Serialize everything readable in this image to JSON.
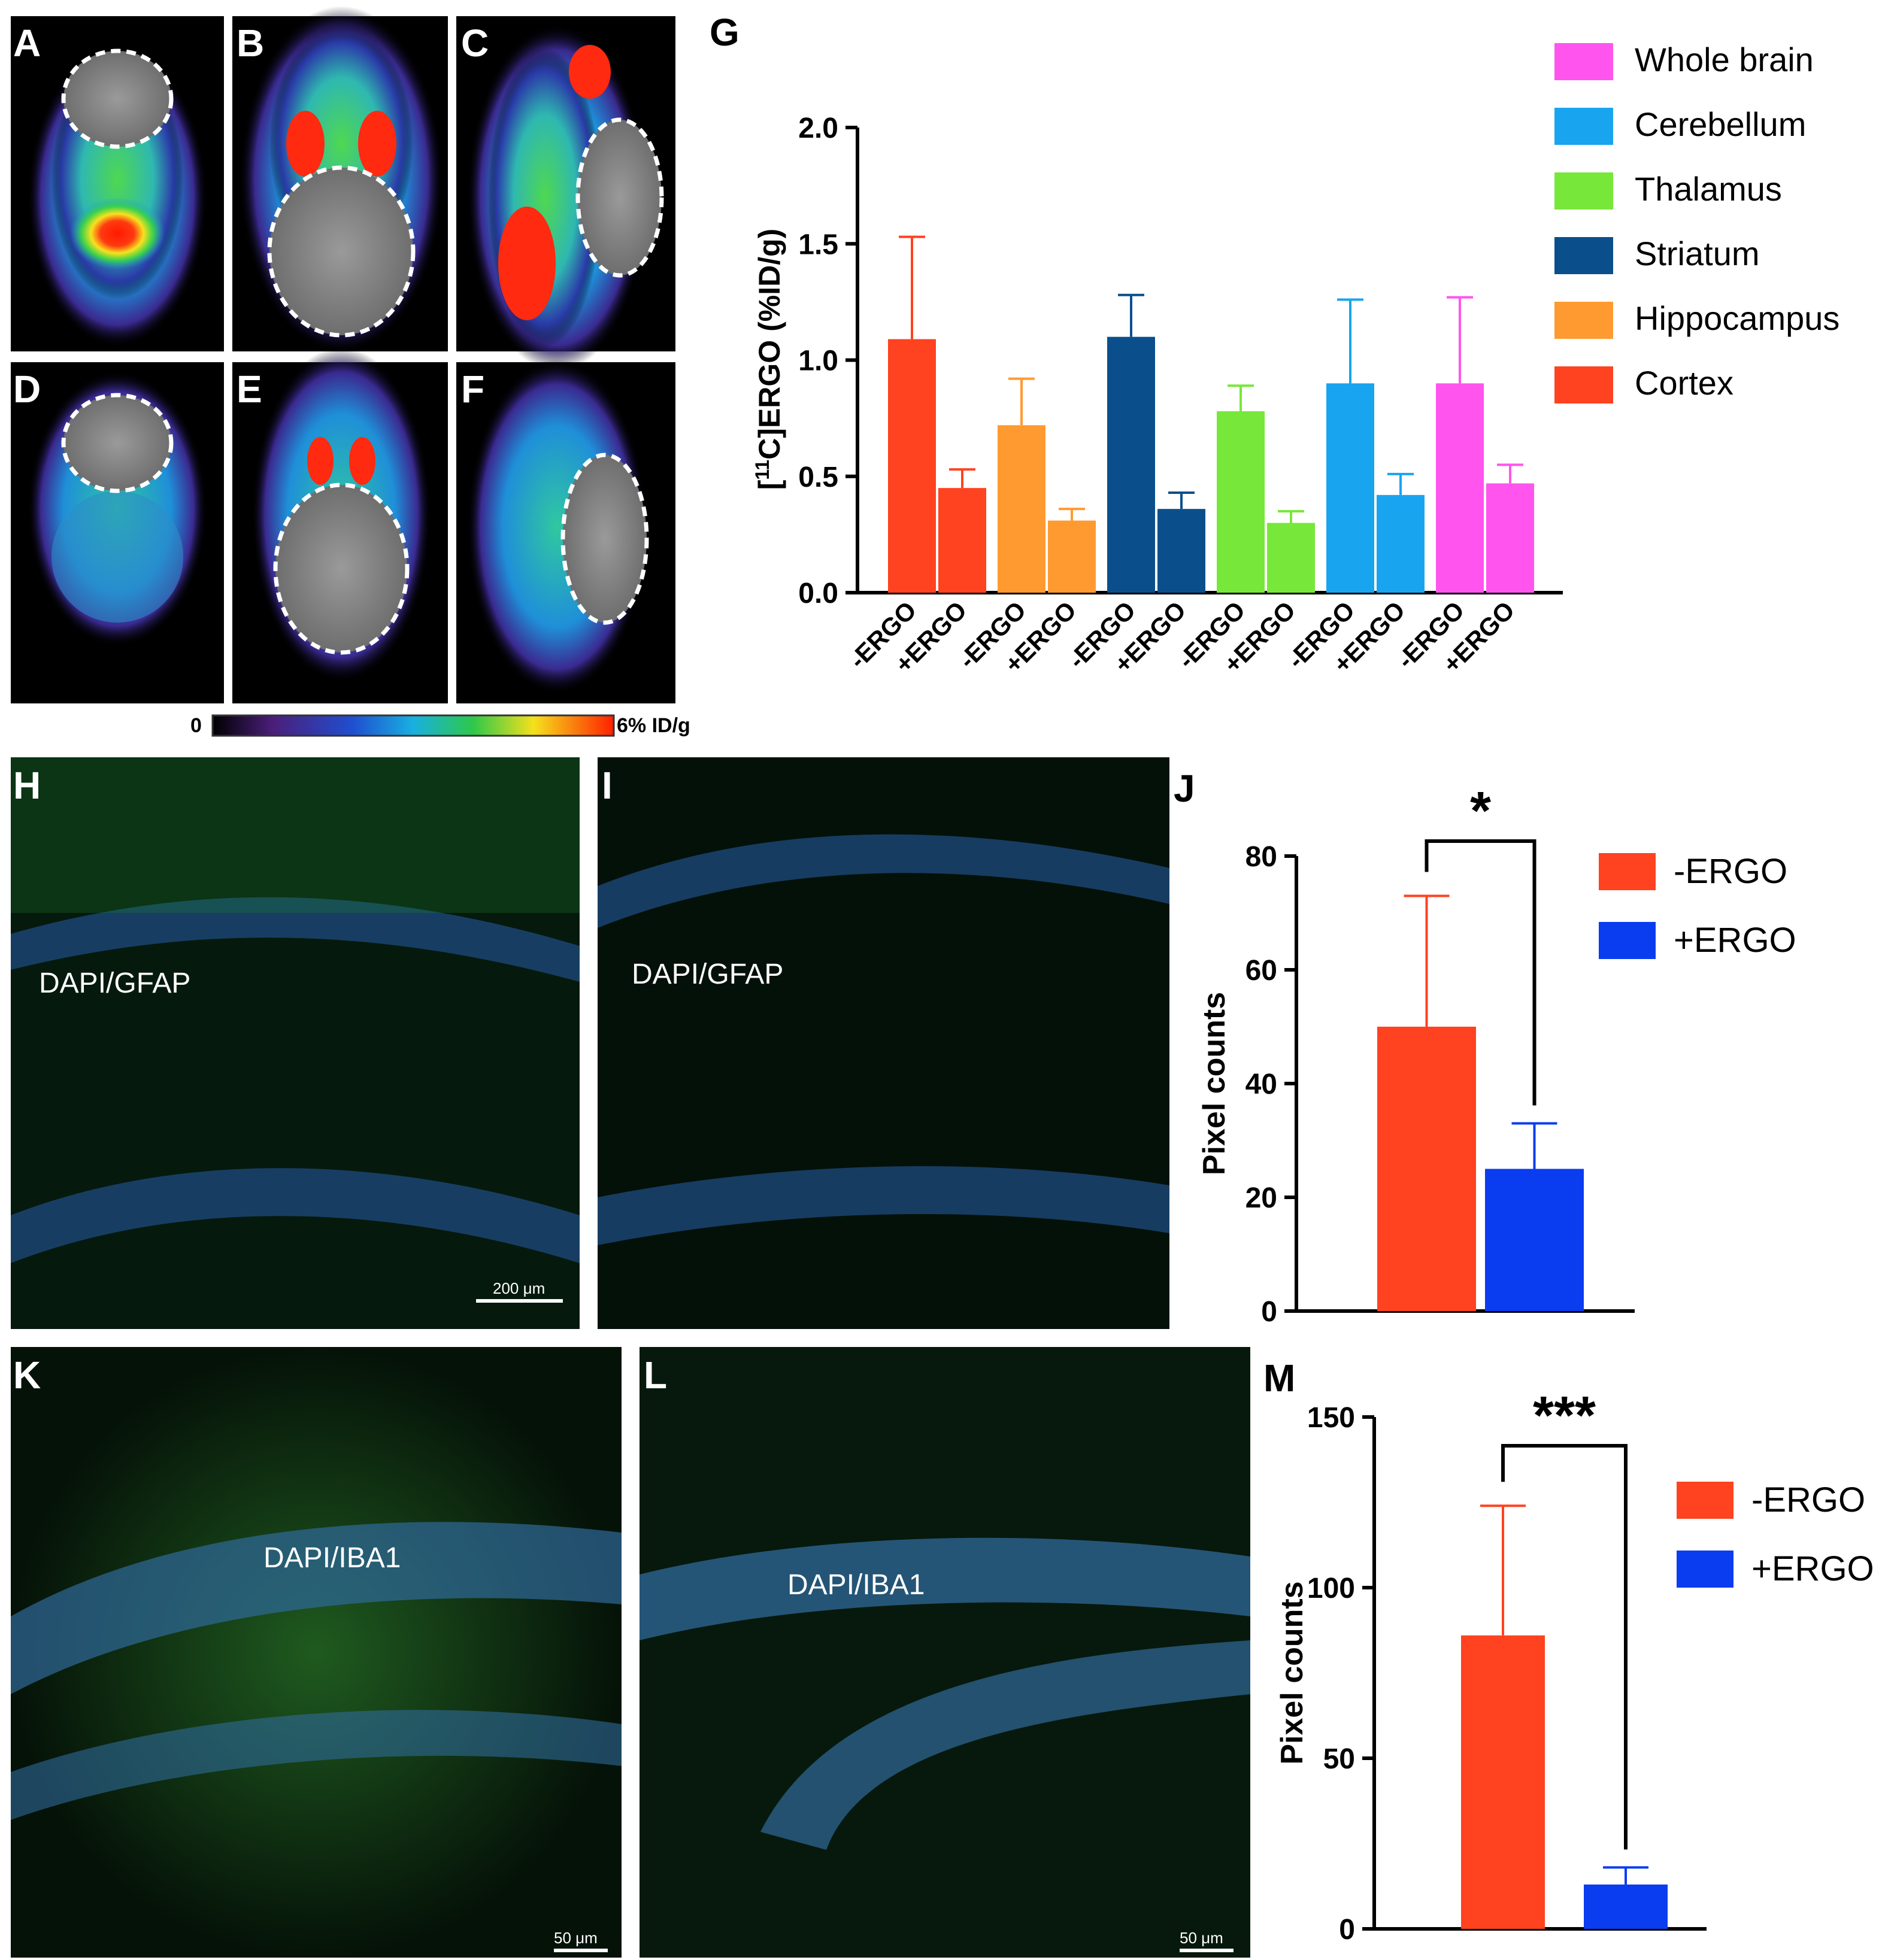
{
  "panels": {
    "A": "A",
    "B": "B",
    "C": "C",
    "D": "D",
    "E": "E",
    "F": "F",
    "G": "G",
    "H": "H",
    "I": "I",
    "J": "J",
    "K": "K",
    "L": "L",
    "M": "M"
  },
  "colorbar": {
    "min_label": "0",
    "max_label": "6% ID/g"
  },
  "micrographs": {
    "H": {
      "stain": "DAPI/GFAP",
      "scale": "200 μm"
    },
    "I": {
      "stain": "DAPI/GFAP"
    },
    "K": {
      "stain": "DAPI/IBA1",
      "scale": "50 μm"
    },
    "L": {
      "stain": "DAPI/IBA1",
      "scale": "50 μm"
    }
  },
  "colors": {
    "cortex": "#ff4220",
    "hippocampus": "#ff9a30",
    "striatum": "#0a4f8c",
    "thalamus": "#77e83a",
    "cerebellum": "#19a4ef",
    "whole_brain": "#ff55ee",
    "minus_ergo": "#ff4220",
    "plus_ergo": "#0a3cf0"
  },
  "chart_data": [
    {
      "id": "G",
      "type": "bar",
      "ylabel_super": "11",
      "ylabel_prefix": "[",
      "ylabel_rest": "C]ERGO (%ID/g)",
      "ylim": [
        0,
        2.0
      ],
      "yticks": [
        "0.0",
        "0.5",
        "1.0",
        "1.5",
        "2.0"
      ],
      "categories": [
        "-ERGO",
        "+ERGO",
        "-ERGO",
        "+ERGO",
        "-ERGO",
        "+ERGO",
        "-ERGO",
        "+ERGO",
        "-ERGO",
        "+ERGO",
        "-ERGO",
        "+ERGO"
      ],
      "groups": [
        {
          "name": "Cortex",
          "color": "#ff4220",
          "values": [
            1.09,
            0.45
          ],
          "errors": [
            0.44,
            0.08
          ]
        },
        {
          "name": "Hippocampus",
          "color": "#ff9a30",
          "values": [
            0.72,
            0.31
          ],
          "errors": [
            0.2,
            0.05
          ]
        },
        {
          "name": "Striatum",
          "color": "#0a4f8c",
          "values": [
            1.1,
            0.36
          ],
          "errors": [
            0.18,
            0.07
          ]
        },
        {
          "name": "Thalamus",
          "color": "#77e83a",
          "values": [
            0.78,
            0.3
          ],
          "errors": [
            0.11,
            0.05
          ]
        },
        {
          "name": "Cerebellum",
          "color": "#19a4ef",
          "values": [
            0.9,
            0.42
          ],
          "errors": [
            0.36,
            0.09
          ]
        },
        {
          "name": "Whole brain",
          "color": "#ff55ee",
          "values": [
            0.9,
            0.47
          ],
          "errors": [
            0.37,
            0.08
          ]
        }
      ],
      "legend": [
        "Whole brain",
        "Cerebellum",
        "Thalamus",
        "Striatum",
        "Hippocampus",
        "Cortex"
      ],
      "legend_colors": [
        "#ff55ee",
        "#19a4ef",
        "#77e83a",
        "#0a4f8c",
        "#ff9a30",
        "#ff4220"
      ],
      "legend_position": "right"
    },
    {
      "id": "J",
      "type": "bar",
      "ylabel": "Pixel counts",
      "ylim": [
        0,
        80
      ],
      "yticks": [
        "0",
        "20",
        "40",
        "60",
        "80"
      ],
      "categories": [
        "-ERGO",
        "+ERGO"
      ],
      "values": [
        50,
        25
      ],
      "errors": [
        23,
        8
      ],
      "colors": [
        "#ff4220",
        "#0a3cf0"
      ],
      "significance": "*",
      "legend": [
        "-ERGO",
        "+ERGO"
      ],
      "legend_position": "right"
    },
    {
      "id": "M",
      "type": "bar",
      "ylabel": "Pixel counts",
      "ylim": [
        0,
        150
      ],
      "yticks": [
        "0",
        "50",
        "100",
        "150"
      ],
      "categories": [
        "-ERGO",
        "+ERGO"
      ],
      "values": [
        86,
        13
      ],
      "errors": [
        38,
        5
      ],
      "colors": [
        "#ff4220",
        "#0a3cf0"
      ],
      "significance": "***",
      "legend": [
        "-ERGO",
        "+ERGO"
      ],
      "legend_position": "right"
    }
  ]
}
